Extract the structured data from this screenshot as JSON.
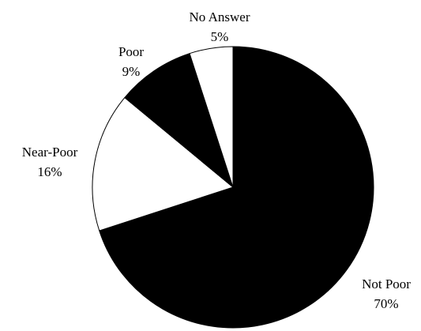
{
  "chart_data": {
    "type": "pie",
    "slices": [
      {
        "label": "Not Poor",
        "value": 70,
        "value_label": "70%",
        "fill": "#000000"
      },
      {
        "label": "Near-Poor",
        "value": 16,
        "value_label": "16%",
        "fill": "#ffffff"
      },
      {
        "label": "Poor",
        "value": 9,
        "value_label": "9%",
        "fill": "#000000"
      },
      {
        "label": "No Answer",
        "value": 5,
        "value_label": "5%",
        "fill": "#ffffff"
      }
    ],
    "start": "12 o'clock",
    "direction": "clockwise",
    "slice_outline": "#000000",
    "background": "#ffffff"
  }
}
